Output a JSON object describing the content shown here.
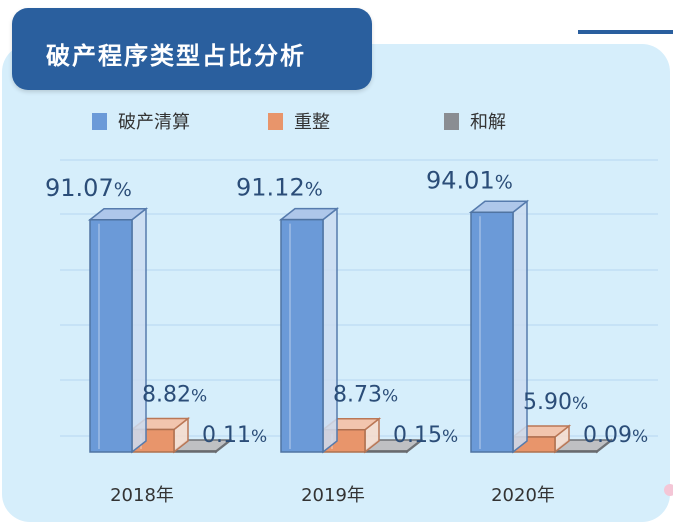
{
  "title": "破产程序类型占比分析",
  "colors": {
    "clearing": "#6b9ad8",
    "reorg": "#e8956b",
    "settle": "#8a8d92",
    "title_bg": "#2a5f9e",
    "panel_bg": "#d6eefb"
  },
  "chart_data": {
    "type": "bar",
    "title": "破产程序类型占比分析",
    "categories": [
      "2018年",
      "2019年",
      "2020年"
    ],
    "ylim": [
      0,
      100
    ],
    "grid": true,
    "legend_position": "top",
    "series": [
      {
        "name": "破产清算",
        "values": [
          91.07,
          91.12,
          94.01
        ],
        "labels": [
          "91.07%",
          "91.12%",
          "94.01%"
        ],
        "color": "#6b9ad8"
      },
      {
        "name": "重整",
        "values": [
          8.82,
          8.73,
          5.9
        ],
        "labels": [
          "8.82%",
          "8.73%",
          "5.90%"
        ],
        "color": "#e8956b"
      },
      {
        "name": "和解",
        "values": [
          0.11,
          0.15,
          0.09
        ],
        "labels": [
          "0.11%",
          "0.15%",
          "0.09%"
        ],
        "color": "#8a8d92"
      }
    ]
  }
}
